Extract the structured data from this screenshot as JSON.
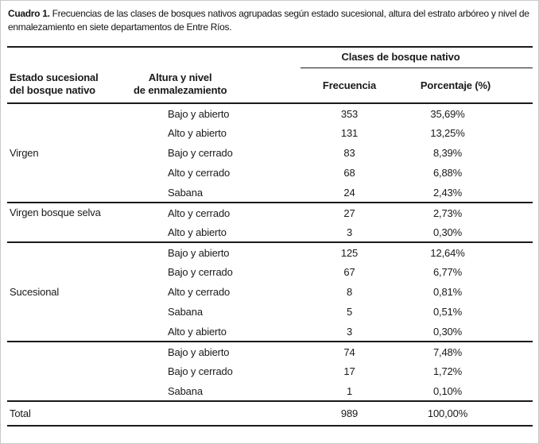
{
  "title": {
    "label": "Cuadro 1.",
    "text": "Frecuencias de las clases de bosques nativos agrupadas según estado sucesional, altura del estrato arbóreo y nivel de enmalezamiento en siete departamentos de Entre Ríos."
  },
  "table": {
    "group_header": "Clases de bosque nativo",
    "col_headers": {
      "estado_line1": "Estado sucesional",
      "estado_line2": "del bosque nativo",
      "altura_line1": "Altura y nivel",
      "altura_line2": "de enmalezamiento",
      "frecuencia": "Frecuencia",
      "porcentaje": "Porcentaje (%)"
    },
    "blocks": [
      {
        "label": "Virgen",
        "rows": [
          {
            "altura": "Bajo y abierto",
            "frecuencia": "353",
            "porcentaje": "35,69%"
          },
          {
            "altura": "Alto y abierto",
            "frecuencia": "131",
            "porcentaje": "13,25%"
          },
          {
            "altura": "Bajo y cerrado",
            "frecuencia": "83",
            "porcentaje": "8,39%"
          },
          {
            "altura": "Alto y cerrado",
            "frecuencia": "68",
            "porcentaje": "6,88%"
          },
          {
            "altura": "Sabana",
            "frecuencia": "24",
            "porcentaje": "2,43%"
          }
        ]
      },
      {
        "label": "Virgen bosque selva",
        "rows": [
          {
            "altura": "Alto y cerrado",
            "frecuencia": "27",
            "porcentaje": "2,73%"
          },
          {
            "altura": "Alto y abierto",
            "frecuencia": "3",
            "porcentaje": "0,30%"
          }
        ]
      },
      {
        "label": "Sucesional",
        "rows": [
          {
            "altura": "Bajo y abierto",
            "frecuencia": "125",
            "porcentaje": "12,64%"
          },
          {
            "altura": "Bajo y cerrado",
            "frecuencia": "67",
            "porcentaje": "6,77%"
          },
          {
            "altura": "Alto y cerrado",
            "frecuencia": "8",
            "porcentaje": "0,81%"
          },
          {
            "altura": "Sabana",
            "frecuencia": "5",
            "porcentaje": "0,51%"
          },
          {
            "altura": "Alto y abierto",
            "frecuencia": "3",
            "porcentaje": "0,30%"
          }
        ]
      },
      {
        "label": "",
        "rows": [
          {
            "altura": "Bajo y abierto",
            "frecuencia": "74",
            "porcentaje": "7,48%"
          },
          {
            "altura": "Bajo y cerrado",
            "frecuencia": "17",
            "porcentaje": "1,72%"
          },
          {
            "altura": "Sabana",
            "frecuencia": "1",
            "porcentaje": "0,10%"
          }
        ]
      }
    ],
    "total": {
      "label": "Total",
      "frecuencia": "989",
      "porcentaje": "100,00%"
    }
  }
}
